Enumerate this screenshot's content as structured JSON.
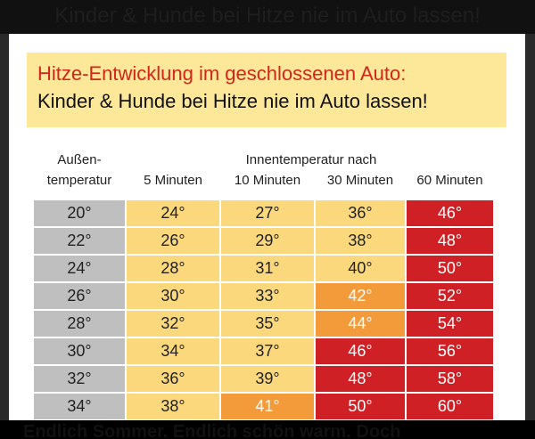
{
  "background_ghost_text": "Kinder & Hunde bei Hitze nie im Auto lassen!",
  "banner": {
    "title": "Hitze-Entwicklung im geschlossenen Auto:",
    "subtitle": "Kinder & Hunde bei Hitze nie im Auto lassen!"
  },
  "table": {
    "outside_header_line1": "Außen-",
    "outside_header_line2": "temperatur",
    "inside_header": "Innentemperatur nach",
    "columns": [
      "5 Minuten",
      "10 Minuten",
      "30 Minuten",
      "60 Minuten"
    ],
    "rows": [
      {
        "cells": [
          {
            "v": "20°",
            "c": "gray"
          },
          {
            "v": "24°",
            "c": "yellow"
          },
          {
            "v": "27°",
            "c": "yellow"
          },
          {
            "v": "36°",
            "c": "yellow"
          },
          {
            "v": "46°",
            "c": "red"
          }
        ]
      },
      {
        "cells": [
          {
            "v": "22°",
            "c": "gray"
          },
          {
            "v": "26°",
            "c": "yellow"
          },
          {
            "v": "29°",
            "c": "yellow"
          },
          {
            "v": "38°",
            "c": "yellow"
          },
          {
            "v": "48°",
            "c": "red"
          }
        ]
      },
      {
        "cells": [
          {
            "v": "24°",
            "c": "gray"
          },
          {
            "v": "28°",
            "c": "yellow"
          },
          {
            "v": "31°",
            "c": "yellow"
          },
          {
            "v": "40°",
            "c": "yellow"
          },
          {
            "v": "50°",
            "c": "red"
          }
        ]
      },
      {
        "cells": [
          {
            "v": "26°",
            "c": "gray"
          },
          {
            "v": "30°",
            "c": "yellow"
          },
          {
            "v": "33°",
            "c": "yellow"
          },
          {
            "v": "42°",
            "c": "orange"
          },
          {
            "v": "52°",
            "c": "red"
          }
        ]
      },
      {
        "cells": [
          {
            "v": "28°",
            "c": "gray"
          },
          {
            "v": "32°",
            "c": "yellow"
          },
          {
            "v": "35°",
            "c": "yellow"
          },
          {
            "v": "44°",
            "c": "orange"
          },
          {
            "v": "54°",
            "c": "red"
          }
        ]
      },
      {
        "cells": [
          {
            "v": "30°",
            "c": "gray"
          },
          {
            "v": "34°",
            "c": "yellow"
          },
          {
            "v": "37°",
            "c": "yellow"
          },
          {
            "v": "46°",
            "c": "red"
          },
          {
            "v": "56°",
            "c": "red"
          }
        ]
      },
      {
        "cells": [
          {
            "v": "32°",
            "c": "gray"
          },
          {
            "v": "36°",
            "c": "yellow"
          },
          {
            "v": "39°",
            "c": "yellow"
          },
          {
            "v": "48°",
            "c": "red"
          },
          {
            "v": "58°",
            "c": "red"
          }
        ]
      },
      {
        "cells": [
          {
            "v": "34°",
            "c": "gray"
          },
          {
            "v": "38°",
            "c": "yellow"
          },
          {
            "v": "41°",
            "c": "orange"
          },
          {
            "v": "50°",
            "c": "red"
          },
          {
            "v": "60°",
            "c": "red"
          }
        ]
      }
    ]
  },
  "caption": "Endlich Sommer. Endlich schön warm. Doch",
  "colors": {
    "gray": "#bfbfbf",
    "yellow": "#fcd87c",
    "orange": "#f39a3b",
    "red": "#cf2025",
    "banner": "#fde799",
    "title_red": "#d2251b"
  }
}
